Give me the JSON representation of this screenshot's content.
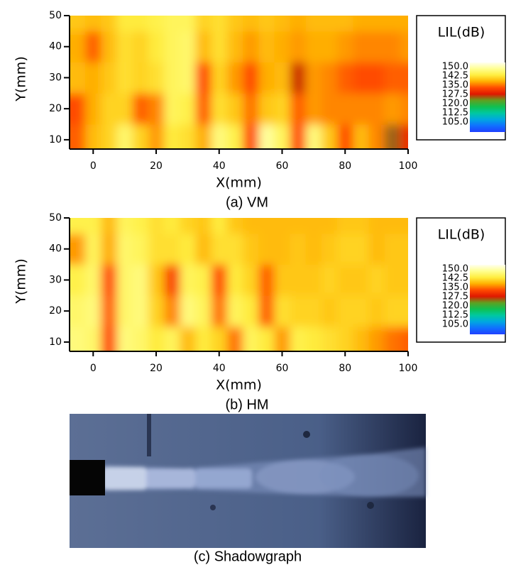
{
  "chart_data": [
    {
      "type": "heatmap",
      "caption": "(a) VM",
      "xlabel": "X(mm)",
      "ylabel": "Y(mm)",
      "legend_title": "LIL(dB)",
      "xlim": [
        -7.5,
        100
      ],
      "ylim": [
        7,
        50
      ],
      "xticks": [
        0,
        20,
        40,
        60,
        80,
        100
      ],
      "yticks": [
        10,
        20,
        30,
        40,
        50
      ],
      "x": [
        -5,
        0,
        5,
        10,
        15,
        20,
        25,
        30,
        35,
        40,
        45,
        50,
        55,
        60,
        65,
        70,
        75,
        80,
        85,
        90,
        95,
        100
      ],
      "y": [
        10,
        20,
        30,
        40,
        50
      ],
      "z": [
        [
          134,
          139,
          141,
          146,
          141,
          137,
          143,
          142,
          138,
          147,
          144,
          133,
          149,
          145,
          133,
          147,
          140,
          133,
          139,
          136,
          125,
          130
        ],
        [
          133,
          138,
          141,
          141,
          134,
          136,
          145,
          144,
          134,
          142,
          140,
          135,
          140,
          141,
          134,
          137,
          136,
          136,
          136,
          136,
          137,
          136
        ],
        [
          139,
          138,
          140,
          142,
          141,
          142,
          145,
          146,
          133,
          141,
          137,
          133,
          138,
          139,
          127,
          137,
          136,
          134,
          133,
          133,
          134,
          134
        ],
        [
          138,
          134,
          139,
          142,
          141,
          143,
          145,
          146,
          139,
          142,
          139,
          137,
          139,
          138,
          137,
          138,
          138,
          137,
          136,
          136,
          136,
          137
        ],
        [
          140,
          139,
          140,
          143,
          143,
          144,
          145,
          145,
          141,
          142,
          140,
          139,
          140,
          139,
          138,
          139,
          139,
          139,
          138,
          138,
          138,
          138
        ]
      ],
      "clim": [
        97,
        153.5
      ],
      "colormap": [
        "#2040ff",
        "#1070ff",
        "#00a8e0",
        "#00c8a0",
        "#10c050",
        "#60a020",
        "#e01800",
        "#ff4a00",
        "#ffb000",
        "#ffee40",
        "#ffff90",
        "#fffff0"
      ],
      "colorbar_ticks": [
        {
          "value": 150,
          "label": "150.0"
        },
        {
          "value": 142.5,
          "label": "142.5"
        },
        {
          "value": 135,
          "label": "135.0"
        },
        {
          "value": 127.5,
          "label": "127.5"
        },
        {
          "value": 120,
          "label": "120.0"
        },
        {
          "value": 112.5,
          "label": "112.5"
        },
        {
          "value": 105,
          "label": "105.0"
        }
      ]
    },
    {
      "type": "heatmap",
      "caption": "(b) HM",
      "xlabel": "X(mm)",
      "ylabel": "Y(mm)",
      "legend_title": "LIL(dB)",
      "xlim": [
        -7.5,
        100
      ],
      "ylim": [
        7,
        50
      ],
      "xticks": [
        0,
        20,
        40,
        60,
        80,
        100
      ],
      "yticks": [
        10,
        20,
        30,
        40,
        50
      ],
      "x": [
        -5,
        0,
        5,
        10,
        15,
        20,
        25,
        30,
        35,
        40,
        45,
        50,
        55,
        60,
        65,
        70,
        75,
        80,
        85,
        90,
        95,
        100
      ],
      "y": [
        10,
        20,
        30,
        40,
        50
      ],
      "z": [
        [
          147,
          146,
          133,
          147,
          146,
          143,
          145,
          139,
          143,
          141,
          135,
          145,
          143,
          137,
          144,
          143,
          142,
          141,
          139,
          137,
          135,
          134
        ],
        [
          146,
          147,
          134,
          146,
          147,
          141,
          136,
          147,
          145,
          135,
          145,
          143,
          134,
          142,
          141,
          141,
          140,
          141,
          141,
          140,
          141,
          141
        ],
        [
          144,
          146,
          133,
          146,
          147,
          140,
          132,
          145,
          144,
          133,
          143,
          141,
          134,
          140,
          140,
          140,
          141,
          140,
          140,
          141,
          140,
          140
        ],
        [
          137,
          145,
          138,
          146,
          145,
          142,
          142,
          143,
          139,
          142,
          142,
          140,
          139,
          139,
          140,
          139,
          140,
          141,
          141,
          139,
          140,
          140
        ],
        [
          144,
          144,
          139,
          145,
          144,
          142,
          143,
          141,
          140,
          143,
          140,
          139,
          139,
          139,
          139,
          139,
          139,
          140,
          140,
          139,
          139,
          139
        ]
      ],
      "clim": [
        97,
        153.5
      ],
      "colormap": [
        "#2040ff",
        "#1070ff",
        "#00a8e0",
        "#00c8a0",
        "#10c050",
        "#60a020",
        "#e01800",
        "#ff4a00",
        "#ffb000",
        "#ffee40",
        "#ffff90",
        "#fffff0"
      ],
      "colorbar_ticks": [
        {
          "value": 150,
          "label": "150.0"
        },
        {
          "value": 142.5,
          "label": "142.5"
        },
        {
          "value": 135,
          "label": "135.0"
        },
        {
          "value": 127.5,
          "label": "127.5"
        },
        {
          "value": 120,
          "label": "120.0"
        },
        {
          "value": 112.5,
          "label": "112.5"
        },
        {
          "value": 105,
          "label": "105.0"
        }
      ]
    }
  ],
  "image": {
    "caption": "(c) Shadowgraph"
  }
}
